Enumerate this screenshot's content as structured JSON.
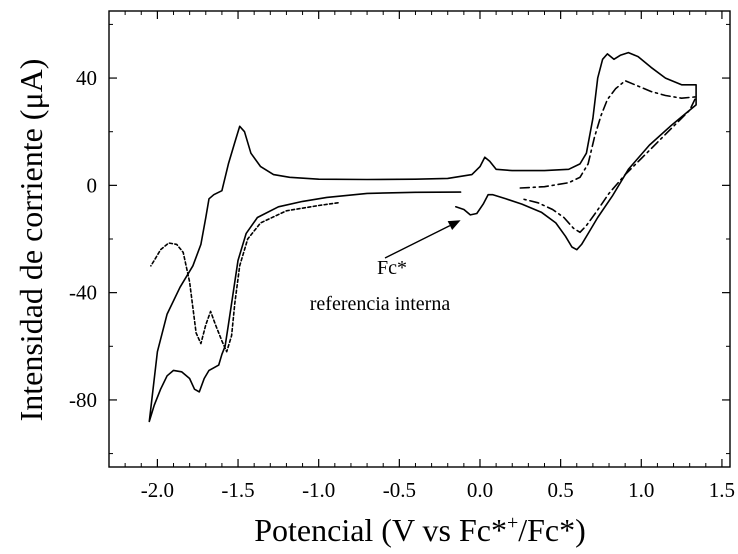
{
  "chart_data": {
    "type": "line",
    "title": "",
    "xlabel": "Potencial (V vs Fc*",
    "xlabel_sup": "+",
    "xlabel_end": "/Fc*)",
    "ylabel": "Intensidad de corriente (μA)",
    "xlim": [
      -2.3,
      1.55
    ],
    "ylim": [
      -105,
      65
    ],
    "x_ticks": [
      -2.0,
      -1.5,
      -1.0,
      -0.5,
      0.0,
      0.5,
      1.0,
      1.5
    ],
    "x_tick_labels": [
      "-2.0",
      "-1.5",
      "-1.0",
      "-0.5",
      "0.0",
      "0.5",
      "1.0",
      "1.5"
    ],
    "y_ticks": [
      -80,
      -40,
      0,
      40
    ],
    "y_tick_labels": [
      "-80",
      "-40",
      "0",
      "40"
    ],
    "grid": false,
    "annotations": [
      {
        "line1": "Fc*",
        "line2": "referencia interna",
        "arrow_to": [
          -0.12,
          -13
        ]
      }
    ],
    "series": [
      {
        "style": "solid",
        "points": [
          [
            -0.12,
            -2.5
          ],
          [
            -0.4,
            -2.6
          ],
          [
            -0.7,
            -3.0
          ],
          [
            -0.95,
            -4.5
          ],
          [
            -1.1,
            -6
          ],
          [
            -1.25,
            -8
          ],
          [
            -1.38,
            -12
          ],
          [
            -1.45,
            -18
          ],
          [
            -1.5,
            -28
          ],
          [
            -1.53,
            -40
          ],
          [
            -1.56,
            -52
          ],
          [
            -1.58,
            -60
          ],
          [
            -1.6,
            -63
          ],
          [
            -1.62,
            -67
          ],
          [
            -1.65,
            -68
          ],
          [
            -1.68,
            -69
          ],
          [
            -1.71,
            -72
          ],
          [
            -1.74,
            -77
          ],
          [
            -1.77,
            -76
          ],
          [
            -1.8,
            -72
          ],
          [
            -1.85,
            -69.5
          ],
          [
            -1.9,
            -69
          ],
          [
            -1.94,
            -71
          ],
          [
            -1.98,
            -76
          ],
          [
            -2.02,
            -82
          ],
          [
            -2.05,
            -88
          ],
          [
            -2.0,
            -62
          ],
          [
            -1.94,
            -48
          ],
          [
            -1.86,
            -38
          ],
          [
            -1.78,
            -30
          ],
          [
            -1.73,
            -22
          ],
          [
            -1.7,
            -12
          ],
          [
            -1.68,
            -5
          ],
          [
            -1.65,
            -3.5
          ],
          [
            -1.6,
            -2
          ],
          [
            -1.56,
            8
          ],
          [
            -1.52,
            16
          ],
          [
            -1.49,
            22
          ],
          [
            -1.46,
            20
          ],
          [
            -1.42,
            12
          ],
          [
            -1.36,
            7
          ],
          [
            -1.28,
            4
          ],
          [
            -1.18,
            3
          ],
          [
            -1.0,
            2.3
          ],
          [
            -0.7,
            2.2
          ],
          [
            -0.4,
            2.3
          ],
          [
            -0.2,
            2.6
          ],
          [
            -0.05,
            4
          ],
          [
            0.0,
            7
          ],
          [
            0.03,
            10.5
          ],
          [
            0.06,
            9
          ],
          [
            0.1,
            6
          ],
          [
            0.2,
            5.5
          ],
          [
            0.4,
            5.5
          ],
          [
            0.55,
            6
          ],
          [
            0.62,
            8
          ],
          [
            0.66,
            12
          ],
          [
            0.7,
            25
          ],
          [
            0.73,
            40
          ],
          [
            0.76,
            47
          ],
          [
            0.79,
            49
          ],
          [
            0.83,
            47
          ],
          [
            0.87,
            48.5
          ],
          [
            0.92,
            49.5
          ],
          [
            0.98,
            48
          ],
          [
            1.06,
            44
          ],
          [
            1.15,
            40
          ],
          [
            1.25,
            37.5
          ],
          [
            1.34,
            37.5
          ],
          [
            1.34,
            30
          ],
          [
            1.28,
            27
          ],
          [
            1.18,
            22
          ],
          [
            1.05,
            15
          ],
          [
            0.92,
            6
          ],
          [
            0.82,
            -4
          ],
          [
            0.73,
            -12
          ],
          [
            0.67,
            -18
          ],
          [
            0.63,
            -22
          ],
          [
            0.6,
            -24
          ],
          [
            0.57,
            -23
          ],
          [
            0.53,
            -19
          ],
          [
            0.47,
            -14
          ],
          [
            0.38,
            -10
          ],
          [
            0.26,
            -7
          ],
          [
            0.16,
            -5
          ],
          [
            0.08,
            -3.5
          ],
          [
            0.05,
            -3.5
          ],
          [
            0.02,
            -7
          ],
          [
            -0.02,
            -10.5
          ],
          [
            -0.06,
            -11
          ],
          [
            -0.1,
            -9
          ],
          [
            -0.15,
            -8
          ]
        ]
      },
      {
        "style": "dotted",
        "points": [
          [
            -0.88,
            -6.5
          ],
          [
            -1.0,
            -7.5
          ],
          [
            -1.2,
            -9.5
          ],
          [
            -1.36,
            -14
          ],
          [
            -1.44,
            -20
          ],
          [
            -1.49,
            -30
          ],
          [
            -1.52,
            -44
          ],
          [
            -1.54,
            -56
          ],
          [
            -1.57,
            -62
          ],
          [
            -1.6,
            -58
          ],
          [
            -1.64,
            -52
          ],
          [
            -1.67,
            -47
          ],
          [
            -1.7,
            -52
          ],
          [
            -1.73,
            -59
          ],
          [
            -1.76,
            -55
          ],
          [
            -1.8,
            -36
          ],
          [
            -1.84,
            -25
          ],
          [
            -1.88,
            -22
          ],
          [
            -1.93,
            -21.5
          ],
          [
            -1.98,
            -24
          ],
          [
            -2.02,
            -28
          ],
          [
            -2.04,
            -30
          ]
        ]
      },
      {
        "style": "dashdot",
        "points": [
          [
            0.25,
            -1
          ],
          [
            0.4,
            -0.5
          ],
          [
            0.55,
            1
          ],
          [
            0.62,
            3
          ],
          [
            0.67,
            8
          ],
          [
            0.71,
            18
          ],
          [
            0.75,
            26
          ],
          [
            0.79,
            32
          ],
          [
            0.84,
            36
          ],
          [
            0.9,
            39
          ],
          [
            0.98,
            37
          ],
          [
            1.06,
            35
          ],
          [
            1.15,
            33.5
          ],
          [
            1.25,
            32.5
          ],
          [
            1.34,
            33
          ],
          [
            1.3,
            28
          ],
          [
            1.2,
            22
          ],
          [
            1.1,
            16
          ],
          [
            1.0,
            10
          ],
          [
            0.9,
            4
          ],
          [
            0.8,
            -3
          ],
          [
            0.72,
            -10
          ],
          [
            0.66,
            -15
          ],
          [
            0.62,
            -17.5
          ],
          [
            0.58,
            -16
          ],
          [
            0.52,
            -12
          ],
          [
            0.45,
            -9
          ],
          [
            0.36,
            -6.5
          ],
          [
            0.26,
            -5
          ]
        ]
      }
    ]
  }
}
